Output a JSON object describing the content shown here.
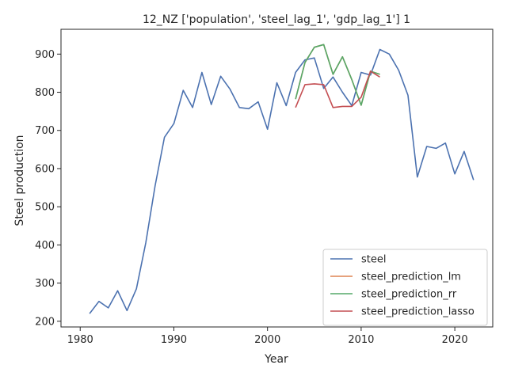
{
  "chart_data": {
    "type": "line",
    "title": "12_NZ ['population', 'steel_lag_1', 'gdp_lag_1'] 1",
    "xlabel": "Year",
    "ylabel": "Steel production",
    "xlim": [
      1977.95,
      2024.05
    ],
    "ylim": [
      185,
      965
    ],
    "xticks": [
      1980,
      1990,
      2000,
      2010,
      2020
    ],
    "yticks": [
      200,
      300,
      400,
      500,
      600,
      700,
      800,
      900
    ],
    "grid": false,
    "legend_position": "lower right",
    "series": [
      {
        "name": "steel",
        "color": "#4c72b0",
        "x": [
          1981,
          1982,
          1983,
          1984,
          1985,
          1986,
          1987,
          1988,
          1989,
          1990,
          1991,
          1992,
          1993,
          1994,
          1995,
          1996,
          1997,
          1998,
          1999,
          2000,
          2001,
          2002,
          2003,
          2004,
          2005,
          2006,
          2007,
          2008,
          2009,
          2010,
          2011,
          2012,
          2013,
          2014,
          2015,
          2016,
          2017,
          2018,
          2019,
          2020,
          2021,
          2022
        ],
        "y": [
          220,
          252,
          235,
          280,
          228,
          285,
          405,
          555,
          682,
          718,
          805,
          760,
          852,
          768,
          842,
          808,
          760,
          757,
          775,
          703,
          825,
          765,
          852,
          885,
          890,
          810,
          840,
          800,
          765,
          852,
          845,
          912,
          900,
          858,
          792,
          578,
          658,
          653,
          667,
          586,
          645,
          570
        ]
      },
      {
        "name": "steel_prediction_lm",
        "color": "#dd8452",
        "x": [
          2003,
          2004,
          2005,
          2006,
          2007,
          2008,
          2009,
          2010,
          2011,
          2012
        ],
        "y": [
          782,
          878,
          918,
          925,
          847,
          893,
          833,
          766,
          855,
          847
        ]
      },
      {
        "name": "steel_prediction_rr",
        "color": "#55a868",
        "x": [
          2003,
          2004,
          2005,
          2006,
          2007,
          2008,
          2009,
          2010,
          2011,
          2012
        ],
        "y": [
          782,
          878,
          918,
          925,
          847,
          893,
          833,
          766,
          855,
          847
        ]
      },
      {
        "name": "steel_prediction_lasso",
        "color": "#c44e52",
        "x": [
          2003,
          2004,
          2005,
          2006,
          2007,
          2008,
          2009,
          2010,
          2011,
          2012
        ],
        "y": [
          760,
          820,
          822,
          820,
          760,
          763,
          763,
          787,
          855,
          840
        ]
      }
    ]
  }
}
